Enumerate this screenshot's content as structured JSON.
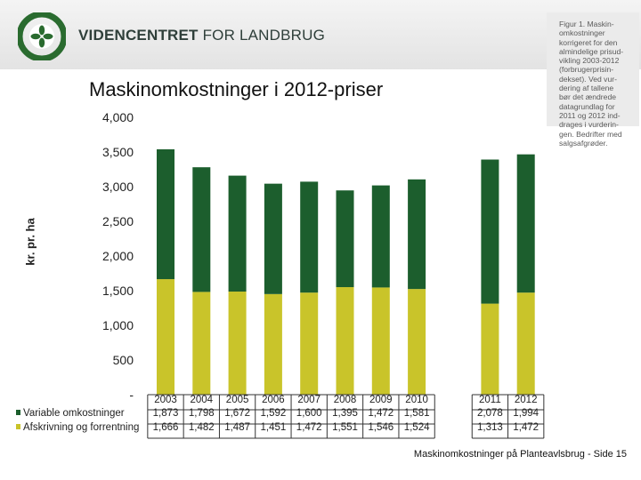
{
  "header": {
    "brand_bold": "VIDENCENTRET",
    "brand_light": "FOR LANDBRUG",
    "logo_ring_text": "LANDBRUG & FØDEVARER",
    "logo_icon": "four-leaf-logo-icon",
    "brand_color": "#2f3f3a",
    "logo_color": "#2a6b2f"
  },
  "note": "Figur 1. Maskin-\nomkostninger\nkorrigeret for den\nalmindelige prisud-\nvikling 2003-2012\n(forbrugerprisin-\ndekset). Ved vur-\ndering af tallene\nbør det ændrede\ndatagrundlag for\n2011 og 2012 ind-\ndrages i vurderin-\ngen. Bedrifter med\nsalgsafgrøder.",
  "footer": "Maskinomkostninger på Planteavlsbrug - Side 15",
  "table": {
    "years": [
      "2003",
      "2004",
      "2005",
      "2006",
      "2007",
      "2008",
      "2009",
      "2010",
      "2011",
      "2012"
    ],
    "rows": [
      {
        "label": "Variable omkostninger",
        "values": [
          "1,873",
          "1,798",
          "1,672",
          "1,592",
          "1,600",
          "1,395",
          "1,472",
          "1,581",
          "2,078",
          "1,994"
        ]
      },
      {
        "label": "Afskrivning og forrentning",
        "values": [
          "1,666",
          "1,482",
          "1,487",
          "1,451",
          "1,472",
          "1,551",
          "1,546",
          "1,524",
          "1,313",
          "1,472"
        ]
      }
    ]
  },
  "chart_data": {
    "type": "bar",
    "stacked": true,
    "title": "Maskinomkostninger i 2012-priser",
    "ylabel": "kr. pr. ha",
    "xlabel": "",
    "categories": [
      "2003",
      "2004",
      "2005",
      "2006",
      "2007",
      "2008",
      "2009",
      "2010",
      "2011",
      "2012"
    ],
    "gap_before": [
      "2011"
    ],
    "series": [
      {
        "name": "Afskrivning og forrentning",
        "color": "#c9c42a",
        "values": [
          1666,
          1482,
          1487,
          1451,
          1472,
          1551,
          1546,
          1524,
          1313,
          1472
        ]
      },
      {
        "name": "Variable omkostninger",
        "color": "#1c5e2d",
        "values": [
          1873,
          1798,
          1672,
          1592,
          1600,
          1395,
          1472,
          1581,
          2078,
          1994
        ]
      }
    ],
    "ylim": [
      0,
      4000
    ],
    "yticks": [
      0,
      500,
      1000,
      1500,
      2000,
      2500,
      3000,
      3500,
      4000
    ],
    "ytick_labels": [
      "-",
      "500",
      "1,000",
      "1,500",
      "2,000",
      "2,500",
      "3,000",
      "3,500",
      "4,000"
    ],
    "grid": false,
    "legend": "data table below chart"
  }
}
